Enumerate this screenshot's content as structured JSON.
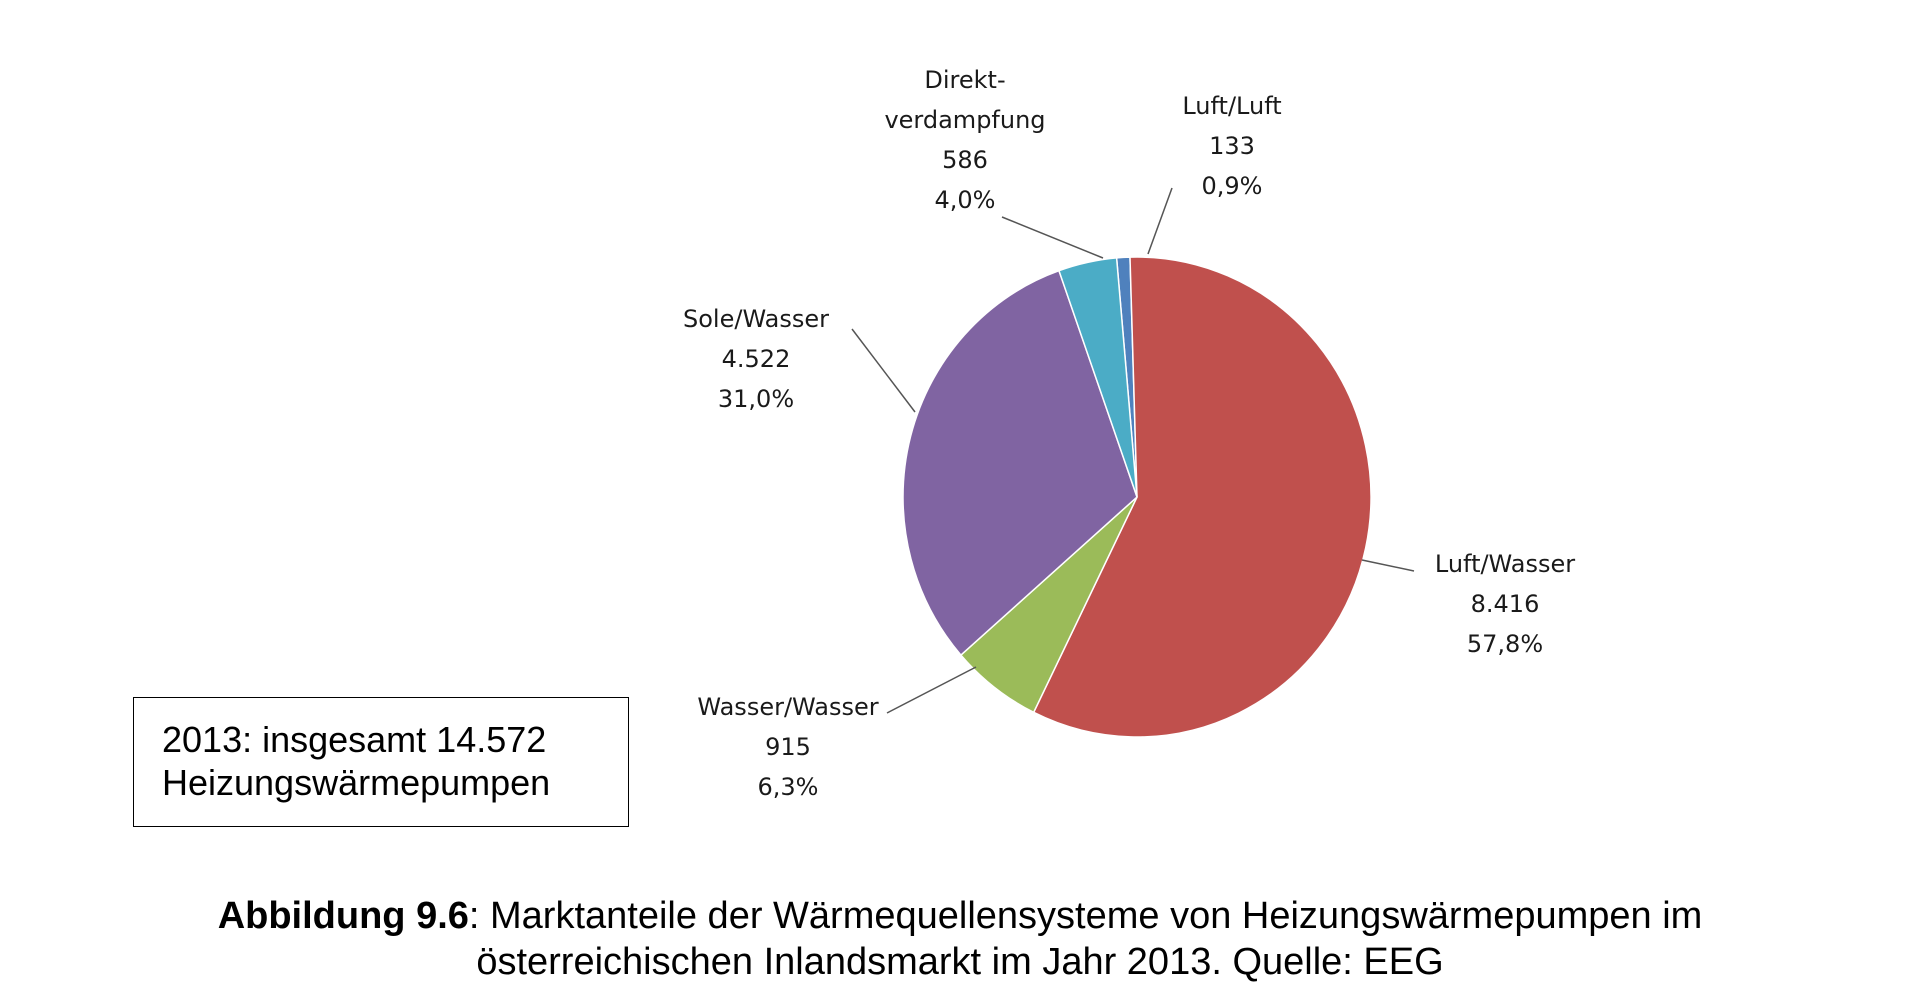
{
  "chart_data": {
    "type": "pie",
    "slices": [
      {
        "name": "Luft/Luft",
        "value": 133,
        "value_label": "133",
        "percent": 0.9,
        "percent_label": "0,9%",
        "color": "#4F81BD"
      },
      {
        "name": "Luft/Wasser",
        "value": 8416,
        "value_label": "8.416",
        "percent": 57.8,
        "percent_label": "57,8%",
        "color": "#C0504D"
      },
      {
        "name": "Wasser/Wasser",
        "value": 915,
        "value_label": "915",
        "percent": 6.3,
        "percent_label": "6,3%",
        "color": "#9BBB59"
      },
      {
        "name": "Sole/Wasser",
        "value": 4522,
        "value_label": "4.522",
        "percent": 31.0,
        "percent_label": "31,0%",
        "color": "#8064A2"
      },
      {
        "name": "Direkt-verdampfung",
        "name_lines": [
          "Direkt-",
          "verdampfung"
        ],
        "value": 586,
        "value_label": "586",
        "percent": 4.0,
        "percent_label": "4,0%",
        "color": "#4BACC6"
      }
    ]
  },
  "total_box": {
    "line1": "2013: insgesamt 14.572",
    "line2": "Heizungswärmepumpen"
  },
  "caption": {
    "label": "Abbildung 9.6",
    "text_line1": ": Marktanteile der Wärmequellensysteme von Heizungswärmepumpen im",
    "text_line2": "österreichischen Inlandsmarkt im Jahr 2013. Quelle: EEG"
  }
}
